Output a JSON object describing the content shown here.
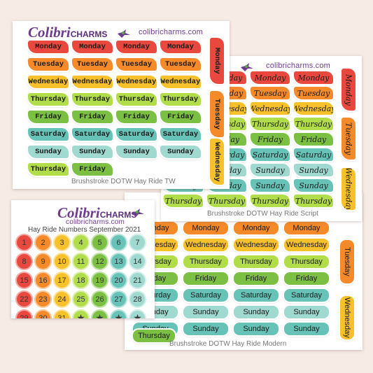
{
  "colors": {
    "red": "#e8483e",
    "orange": "#f58a2a",
    "yellow": "#f7c12c",
    "lightgreen": "#b2dd4b",
    "green": "#7bc043",
    "teal": "#67c3b7",
    "lightteal": "#9fd9d0",
    "purple": "#6e3c8f"
  },
  "sheets": {
    "tw": {
      "brand_script": "Colibri",
      "brand_caps": "CHARMS",
      "url": "colibricharms.com",
      "caption": "Brushstroke DOTW Hay Ride TW",
      "vertical": [
        "Monday",
        "Tuesday",
        "Wednesday"
      ]
    },
    "script": {
      "url": "colibricharms.com",
      "caption": "Brushstroke DOTW Hay Ride Script"
    },
    "modern": {
      "caption": "Brushstroke DOTW Hay Ride Modern",
      "vertical": [
        "Tuesday",
        "Wednesday"
      ]
    },
    "numbers": {
      "brand_script": "Colibri",
      "brand_caps": "CHARMS",
      "url": "colibricharms.com",
      "caption": "Hay Ride Numbers September 2021",
      "numbers": [
        "1",
        "2",
        "3",
        "4",
        "5",
        "6",
        "7",
        "8",
        "9",
        "10",
        "11",
        "12",
        "13",
        "14",
        "15",
        "16",
        "17",
        "18",
        "19",
        "20",
        "21",
        "22",
        "23",
        "24",
        "25",
        "26",
        "27",
        "28",
        "29",
        "30",
        "31",
        "★",
        "★",
        "★",
        "★"
      ]
    }
  },
  "days": [
    "Monday",
    "Tuesday",
    "Wednesday",
    "Thursday",
    "Friday",
    "Saturday",
    "Sunday"
  ]
}
